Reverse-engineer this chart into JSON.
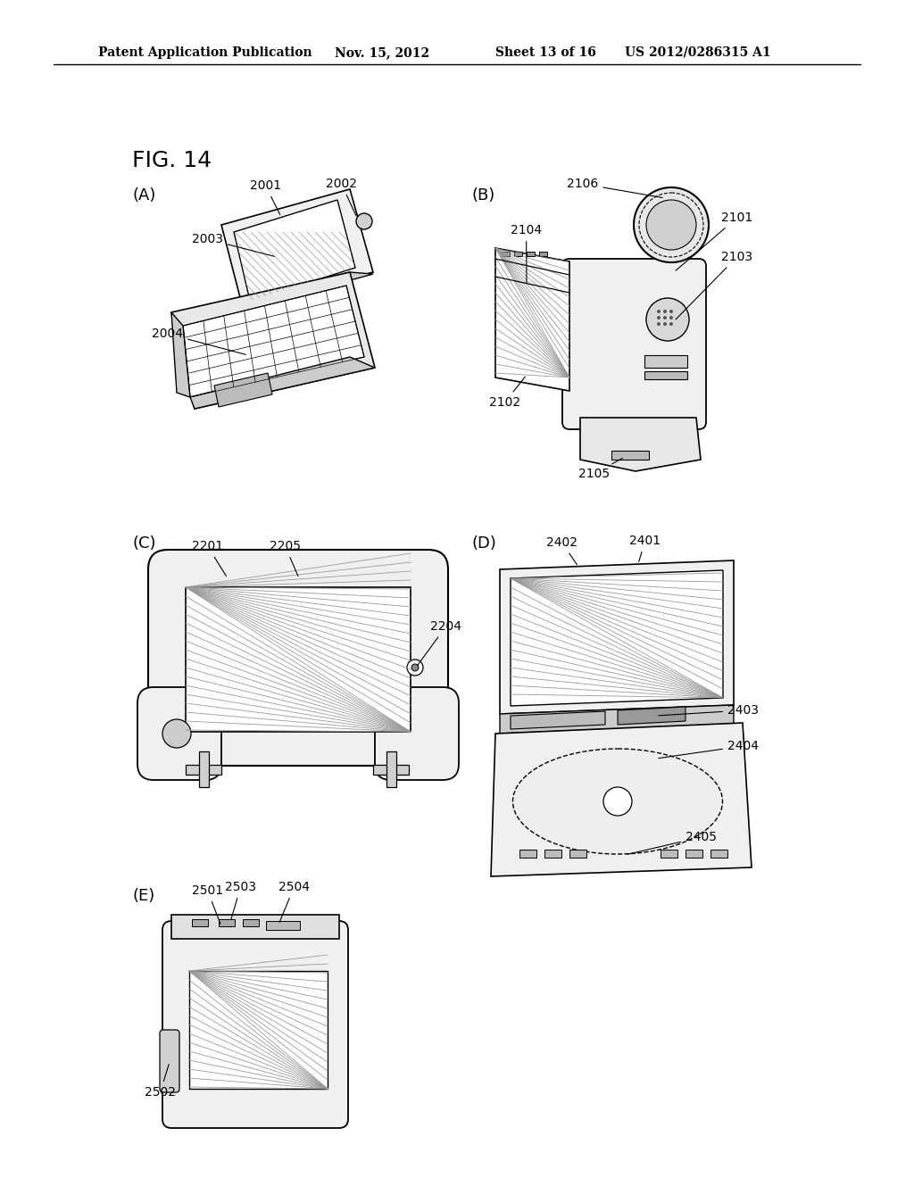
{
  "bg_color": "#ffffff",
  "header_text": "Patent Application Publication",
  "header_date": "Nov. 15, 2012",
  "header_sheet": "Sheet 13 of 16",
  "header_patent": "US 2012/0286315 A1",
  "fig_label": "FIG. 14",
  "panel_A_label": "(A)",
  "panel_B_label": "(B)",
  "panel_C_label": "(C)",
  "panel_D_label": "(D)",
  "panel_E_label": "(E)"
}
